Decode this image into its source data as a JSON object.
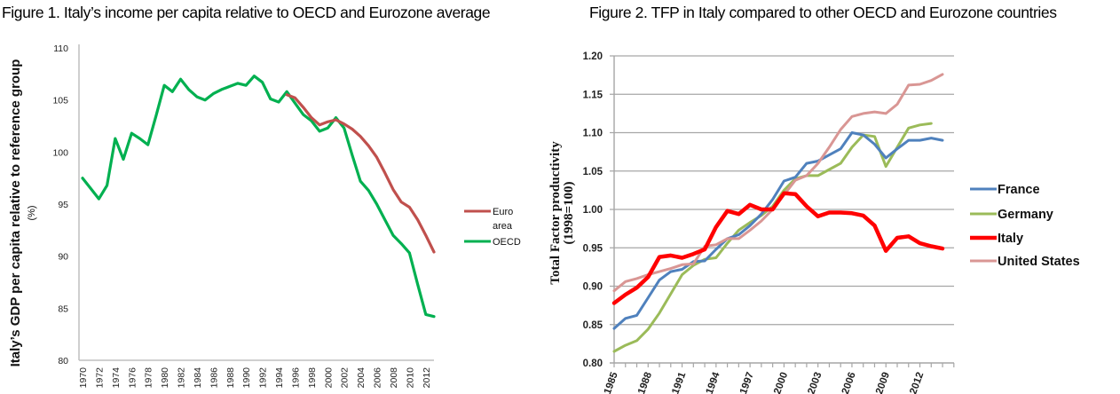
{
  "chart_data": [
    {
      "type": "line",
      "title": "Figure 1. Italy’s income per capita relative to OECD and Eurozone average",
      "xlabel": "",
      "ylabel": "Italy’s GDP per capita relative to reference group",
      "ylabel_sub": "(%)",
      "ylim": [
        80,
        110
      ],
      "yticks": [
        "80",
        "85",
        "90",
        "95",
        "100",
        "105",
        "110"
      ],
      "ytick_values": [
        80,
        85,
        90,
        95,
        100,
        105,
        110
      ],
      "xlim": [
        1970,
        2013
      ],
      "xticks": [
        "1970",
        "1972",
        "1974",
        "1976",
        "1978",
        "1980",
        "1982",
        "1984",
        "1986",
        "1988",
        "1990",
        "1992",
        "1994",
        "1996",
        "1998",
        "2000",
        "2002",
        "2004",
        "2006",
        "2008",
        "2010",
        "2012"
      ],
      "grid": false,
      "legend_position": "right",
      "series": [
        {
          "name": "Euro area",
          "legend_lines": [
            "Euro",
            "area"
          ],
          "color": "#c0504d",
          "x": [
            1995,
            1996,
            1997,
            1998,
            1999,
            2000,
            2001,
            2002,
            2003,
            2004,
            2005,
            2006,
            2007,
            2008,
            2009,
            2010,
            2011,
            2012,
            2013
          ],
          "values": [
            105.5,
            105.2,
            104.3,
            103.3,
            102.6,
            102.9,
            103.1,
            102.7,
            102.2,
            101.5,
            100.6,
            99.5,
            98.0,
            96.4,
            95.2,
            94.7,
            93.5,
            92.0,
            90.4
          ]
        },
        {
          "name": "OECD",
          "legend_lines": [
            "OECD"
          ],
          "color": "#00b050",
          "x": [
            1970,
            1971,
            1972,
            1973,
            1974,
            1975,
            1976,
            1977,
            1978,
            1979,
            1980,
            1981,
            1982,
            1983,
            1984,
            1985,
            1986,
            1987,
            1988,
            1989,
            1990,
            1991,
            1992,
            1993,
            1994,
            1995,
            1996,
            1997,
            1998,
            1999,
            2000,
            2001,
            2002,
            2003,
            2004,
            2005,
            2006,
            2007,
            2008,
            2009,
            2010,
            2011,
            2012,
            2013
          ],
          "values": [
            97.5,
            96.5,
            95.5,
            96.8,
            101.3,
            99.3,
            101.8,
            101.3,
            100.7,
            103.5,
            106.4,
            105.8,
            107.0,
            106.0,
            105.3,
            105.0,
            105.6,
            106.0,
            106.3,
            106.6,
            106.4,
            107.3,
            106.7,
            105.1,
            104.8,
            105.8,
            104.7,
            103.6,
            103.0,
            102.0,
            102.3,
            103.3,
            102.3,
            99.7,
            97.2,
            96.3,
            95.0,
            93.5,
            92.0,
            91.2,
            90.3,
            87.3,
            84.4,
            84.2
          ]
        }
      ]
    },
    {
      "type": "line",
      "title": "Figure 2. TFP in Italy compared to other OECD and Eurozone countries",
      "xlabel": "",
      "ylabel": "Total Factor productivity",
      "ylabel_sub": "(1998=100)",
      "ylim": [
        0.8,
        1.2
      ],
      "yticks": [
        "0.80",
        "0.85",
        "0.90",
        "0.95",
        "1.00",
        "1.05",
        "1.10",
        "1.15",
        "1.20"
      ],
      "ytick_values": [
        0.8,
        0.85,
        0.9,
        0.95,
        1.0,
        1.05,
        1.1,
        1.15,
        1.2
      ],
      "xlim": [
        1985,
        2014
      ],
      "xticks": [
        "1985",
        "1988",
        "1991",
        "1994",
        "1997",
        "2000",
        "2003",
        "2006",
        "2009",
        "2012"
      ],
      "xtick_values": [
        1985,
        1988,
        1991,
        1994,
        1997,
        2000,
        2003,
        2006,
        2009,
        2012
      ],
      "grid": true,
      "legend_position": "right",
      "series": [
        {
          "name": "France",
          "color": "#4f81bd",
          "x_start": 1985,
          "values": [
            0.845,
            0.858,
            0.862,
            0.885,
            0.908,
            0.919,
            0.922,
            0.932,
            0.933,
            0.948,
            0.962,
            0.967,
            0.979,
            0.994,
            1.013,
            1.037,
            1.042,
            1.06,
            1.063,
            1.071,
            1.079,
            1.1,
            1.097,
            1.085,
            1.067,
            1.079,
            1.09,
            1.09,
            1.093,
            1.09
          ]
        },
        {
          "name": "Germany",
          "color": "#9bbb59",
          "x_start": 1985,
          "values": [
            0.815,
            0.823,
            0.829,
            0.844,
            0.865,
            0.89,
            0.915,
            0.927,
            0.935,
            0.937,
            0.956,
            0.973,
            0.983,
            0.992,
            1.004,
            1.025,
            1.04,
            1.044,
            1.044,
            1.052,
            1.06,
            1.081,
            1.097,
            1.095,
            1.056,
            1.081,
            1.106,
            1.11,
            1.112
          ]
        },
        {
          "name": "Italy",
          "color": "#ff0000",
          "x_start": 1985,
          "values": [
            0.878,
            0.889,
            0.898,
            0.912,
            0.938,
            0.94,
            0.937,
            0.942,
            0.948,
            0.977,
            0.998,
            0.994,
            1.006,
            1.0,
            1.0,
            1.021,
            1.02,
            1.004,
            0.991,
            0.996,
            0.996,
            0.995,
            0.992,
            0.979,
            0.946,
            0.963,
            0.965,
            0.956,
            0.952,
            0.949
          ]
        },
        {
          "name": "United States",
          "color": "#d99694",
          "x_start": 1985,
          "values": [
            0.894,
            0.906,
            0.91,
            0.915,
            0.919,
            0.923,
            0.928,
            0.929,
            0.952,
            0.954,
            0.962,
            0.962,
            0.973,
            0.985,
            1.0,
            1.019,
            1.038,
            1.044,
            1.06,
            1.081,
            1.104,
            1.121,
            1.125,
            1.127,
            1.125,
            1.137,
            1.162,
            1.163,
            1.168,
            1.176
          ]
        }
      ]
    }
  ]
}
